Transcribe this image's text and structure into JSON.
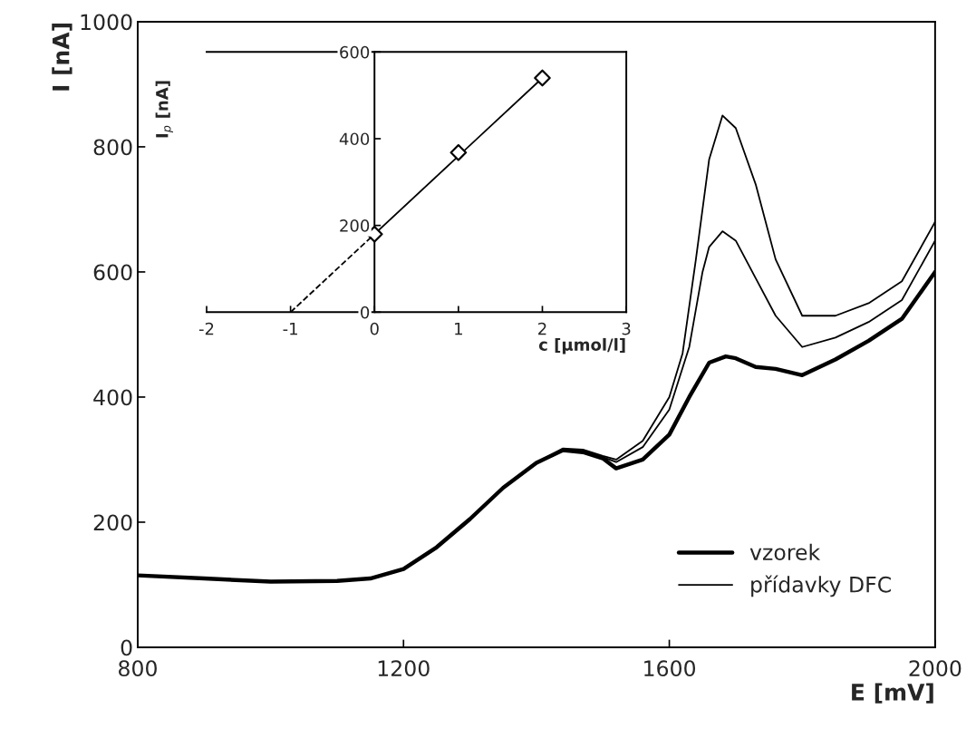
{
  "chart_data": [
    {
      "type": "line",
      "xlabel": "E [mV]",
      "ylabel": "I [nA]",
      "xlim": [
        800,
        2000
      ],
      "ylim": [
        0,
        1000
      ],
      "xticks": [
        800,
        1200,
        1600,
        2000
      ],
      "yticks": [
        0,
        200,
        400,
        600,
        800,
        1000
      ],
      "grid": false,
      "legend": "bottom right",
      "marker": "none",
      "line_style": "solid",
      "series": [
        {
          "name": "vzorek",
          "color": "#000000",
          "x": [
            800,
            900,
            1000,
            1100,
            1150,
            1200,
            1250,
            1300,
            1350,
            1400,
            1440,
            1470,
            1500,
            1520,
            1560,
            1600,
            1630,
            1660,
            1685,
            1700,
            1730,
            1760,
            1800,
            1850,
            1900,
            1950,
            2000
          ],
          "values": [
            115,
            110,
            105,
            106,
            110,
            125,
            160,
            205,
            255,
            295,
            315,
            312,
            302,
            286,
            300,
            340,
            400,
            455,
            465,
            462,
            448,
            445,
            435,
            460,
            490,
            525,
            600
          ]
        },
        {
          "name": "přídavky DFC",
          "color": "#000000",
          "x": [
            800,
            900,
            1000,
            1100,
            1150,
            1200,
            1250,
            1300,
            1350,
            1400,
            1440,
            1470,
            1500,
            1520,
            1560,
            1600,
            1620,
            1640,
            1660,
            1680,
            1700,
            1730,
            1760,
            1800,
            1850,
            1900,
            1950,
            2000
          ],
          "values": [
            115,
            110,
            105,
            106,
            110,
            125,
            160,
            205,
            255,
            295,
            318,
            316,
            306,
            300,
            330,
            400,
            470,
            620,
            780,
            850,
            830,
            740,
            620,
            530,
            530,
            550,
            585,
            680
          ]
        },
        {
          "color": "#000000",
          "x": [
            800,
            900,
            1000,
            1100,
            1150,
            1200,
            1250,
            1300,
            1350,
            1400,
            1440,
            1470,
            1500,
            1520,
            1560,
            1600,
            1630,
            1650,
            1660,
            1680,
            1700,
            1730,
            1760,
            1800,
            1850,
            1900,
            1950,
            2000
          ],
          "values": [
            115,
            110,
            105,
            106,
            110,
            125,
            160,
            205,
            255,
            295,
            316,
            314,
            304,
            296,
            320,
            380,
            480,
            600,
            640,
            665,
            650,
            590,
            530,
            480,
            495,
            520,
            555,
            650
          ]
        }
      ]
    },
    {
      "type": "scatter",
      "xlabel": "c [µmol/l]",
      "ylabel": "I$_{p}$ [nA]",
      "xlim": [
        -2,
        3
      ],
      "ylim": [
        0,
        600
      ],
      "xticks": [
        -2,
        -1,
        0,
        1,
        2,
        3
      ],
      "yticks": [
        0,
        200,
        400,
        600
      ],
      "grid": false,
      "marker": "diamond",
      "series": [
        {
          "color": "#000000",
          "x": [
            0,
            1,
            2
          ],
          "values": [
            180,
            368,
            540
          ]
        },
        {
          "type": "line",
          "color": "#000000",
          "x": [
            0,
            2
          ],
          "values": [
            180,
            540
          ],
          "marker": "none",
          "line_style": "solid"
        },
        {
          "type": "line",
          "color": "#000000",
          "x": [
            -1,
            0
          ],
          "values": [
            0,
            180
          ],
          "marker": "none",
          "line_style": "dashed"
        }
      ]
    }
  ]
}
